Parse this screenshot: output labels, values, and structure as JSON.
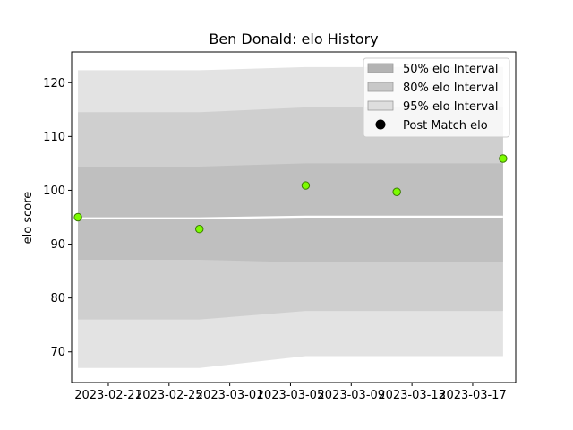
{
  "chart_data": {
    "type": "area",
    "title": "Ben Donald: elo History",
    "xlabel": "",
    "ylabel": "elo score",
    "x_ticks": [
      "2023-02-21",
      "2023-02-25",
      "2023-03-01",
      "2023-03-05",
      "2023-03-09",
      "2023-03-13",
      "2023-03-17"
    ],
    "y_ticks": [
      70,
      80,
      90,
      100,
      110,
      120
    ],
    "ylim": [
      64.3,
      125.7
    ],
    "xlim": [
      "2023-02-18T14:00",
      "2023-03-19T20:00"
    ],
    "grid": false,
    "legend_position": "top-right",
    "x": [
      "2023-02-19",
      "2023-02-27",
      "2023-03-06",
      "2023-03-12",
      "2023-03-19"
    ],
    "center_line": [
      94.8,
      94.8,
      95.1,
      95.1,
      95.1
    ],
    "bands": [
      {
        "name": "95% elo Interval",
        "color": "#e3e3e3",
        "lower": [
          67.0,
          67.0,
          69.2,
          69.2,
          69.2
        ],
        "upper": [
          122.3,
          122.3,
          122.9,
          122.9,
          122.9
        ]
      },
      {
        "name": "80% elo Interval",
        "color": "#cfcfcf",
        "lower": [
          76.0,
          76.0,
          77.6,
          77.6,
          77.6
        ],
        "upper": [
          114.5,
          114.5,
          115.4,
          115.4,
          115.4
        ]
      },
      {
        "name": "50% elo Interval",
        "color": "#bfbfbf",
        "lower": [
          87.1,
          87.1,
          86.6,
          86.6,
          86.6
        ],
        "upper": [
          104.4,
          104.4,
          105.0,
          105.0,
          105.0
        ]
      }
    ],
    "post_match": {
      "name": "Post Match elo",
      "color": "#7cfc00",
      "edge_color": "#3a7a00",
      "x": [
        "2023-02-19",
        "2023-02-27",
        "2023-03-06",
        "2023-03-12",
        "2023-03-19"
      ],
      "y": [
        95.0,
        92.8,
        100.9,
        99.7,
        105.9
      ]
    },
    "legend": [
      {
        "label": "50% elo Interval",
        "swatch": "#b3b3b3",
        "kind": "patch"
      },
      {
        "label": "80% elo Interval",
        "swatch": "#c8c8c8",
        "kind": "patch"
      },
      {
        "label": "95% elo Interval",
        "swatch": "#dedede",
        "kind": "patch"
      },
      {
        "label": "Post Match elo",
        "swatch": "#000000",
        "kind": "marker"
      }
    ]
  }
}
